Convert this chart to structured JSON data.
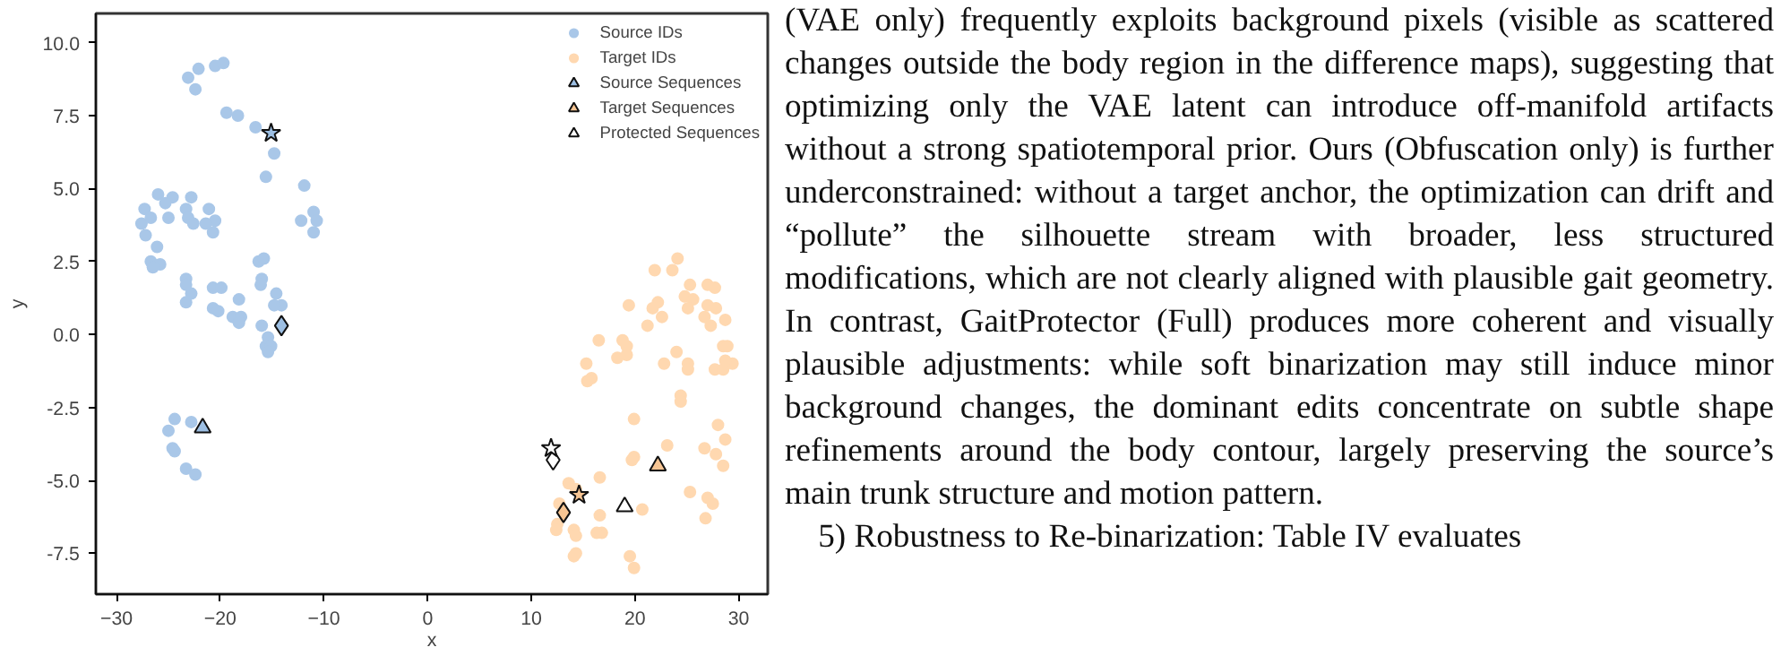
{
  "chart_data": {
    "type": "scatter",
    "xlabel": "x",
    "ylabel": "y",
    "xlim": [
      -32.0,
      32.8
    ],
    "ylim": [
      -8.9,
      11.0
    ],
    "xticks": [
      -30,
      -20,
      -10,
      0,
      10,
      20,
      30
    ],
    "yticks": [
      {
        "value": 10,
        "label": "10.0"
      },
      {
        "value": 7.5,
        "label": "7.5"
      },
      {
        "value": 5,
        "label": "5.0"
      },
      {
        "value": 2.5,
        "label": "2.5"
      },
      {
        "value": 0,
        "label": "0.0"
      },
      {
        "value": -2.5,
        "label": "-2.5"
      },
      {
        "value": -5,
        "label": "-5.0"
      },
      {
        "value": -7.5,
        "label": "-7.5"
      }
    ],
    "grid": false,
    "legend": "top right",
    "series": [
      {
        "name": "Source IDs",
        "color": "#a9c7e8",
        "marker": "circle",
        "x": [
          -23.1,
          -22.1,
          -22.4,
          -20.5,
          -19.7,
          -19.4,
          -18.3,
          -16.6,
          -14.8,
          -15.6,
          -11.9,
          -11.0,
          -10.7,
          -12.2,
          -11.0,
          -26.0,
          -24.6,
          -25.3,
          -27.3,
          -27.6,
          -26.7,
          -27.2,
          -26.1,
          -25.0,
          -23.3,
          -22.8,
          -23.1,
          -22.6,
          -21.1,
          -20.5,
          -20.7,
          -21.4,
          -26.7,
          -25.8,
          -23.3,
          -16.3,
          -15.8,
          -26.5,
          -23.3,
          -22.8,
          -23.3,
          -20.7,
          -19.9,
          -20.7,
          -20.2,
          -18.2,
          -18.8,
          -18.0,
          -18.2,
          -16.0,
          -16.1,
          -14.6,
          -14.1,
          -14.8,
          -16.0,
          -15.4,
          -15.6,
          -15.1,
          -15.4,
          -24.4,
          -22.8,
          -25.0,
          -24.6,
          -24.4,
          -23.3,
          -22.4
        ],
        "values": [
          8.8,
          9.1,
          8.4,
          9.2,
          9.3,
          7.6,
          7.5,
          7.1,
          6.2,
          5.4,
          5.1,
          4.2,
          3.9,
          3.9,
          3.5,
          4.8,
          4.7,
          4.5,
          4.3,
          3.8,
          4.0,
          3.4,
          3.0,
          4.0,
          4.3,
          4.7,
          4.0,
          3.8,
          4.3,
          3.9,
          3.5,
          3.8,
          2.5,
          2.4,
          1.9,
          2.5,
          2.6,
          2.3,
          1.7,
          1.4,
          1.1,
          1.6,
          1.6,
          0.9,
          0.8,
          1.2,
          0.6,
          0.6,
          0.4,
          1.9,
          1.7,
          1.4,
          1.0,
          1.0,
          0.3,
          -0.1,
          -0.4,
          -0.4,
          -0.6,
          -2.9,
          -3.0,
          -3.3,
          -3.9,
          -4.0,
          -4.6,
          -4.8
        ]
      },
      {
        "name": "Target IDs",
        "color": "#ffd8b0",
        "marker": "circle",
        "x": [
          24.1,
          23.6,
          21.9,
          25.3,
          27.0,
          27.7,
          24.8,
          25.6,
          27.0,
          27.8,
          22.2,
          21.7,
          22.6,
          21.2,
          25.1,
          19.4,
          26.7,
          27.3,
          28.7,
          16.5,
          18.8,
          19.2,
          18.3,
          19.2,
          15.3,
          15.8,
          15.4,
          22.8,
          24.0,
          25.1,
          25.1,
          28.5,
          28.9,
          27.7,
          28.5,
          29.4,
          28.7,
          24.4,
          24.4,
          19.9,
          28.0,
          23.1,
          26.7,
          28.7,
          27.8,
          28.5,
          19.9,
          19.7,
          16.6,
          25.3,
          27.0,
          27.5,
          26.8,
          20.7,
          13.6,
          14.3,
          12.7,
          12.5,
          14.1,
          14.3,
          16.6,
          16.8,
          16.3,
          14.3,
          14.1,
          19.5,
          12.4,
          19.9
        ],
        "values": [
          2.6,
          2.2,
          2.2,
          1.7,
          1.7,
          1.6,
          1.3,
          1.2,
          1.0,
          0.9,
          1.1,
          0.9,
          0.6,
          0.3,
          0.9,
          1.0,
          0.6,
          0.3,
          0.5,
          -0.2,
          -0.2,
          -0.4,
          -0.8,
          -0.7,
          -1.0,
          -1.5,
          -1.6,
          -1.0,
          -0.6,
          -1.0,
          -1.2,
          -0.4,
          -0.4,
          -1.2,
          -1.2,
          -1.0,
          -0.9,
          -2.1,
          -2.3,
          -2.9,
          -3.1,
          -3.8,
          -3.9,
          -3.6,
          -4.1,
          -4.5,
          -4.2,
          -4.3,
          -4.9,
          -5.4,
          -5.6,
          -5.8,
          -6.3,
          -6.0,
          -5.1,
          -5.3,
          -5.8,
          -6.5,
          -6.7,
          -6.9,
          -6.2,
          -6.8,
          -6.8,
          -7.5,
          -7.6,
          -7.6,
          -6.7,
          -8.0
        ]
      },
      {
        "name": "Source Sequences",
        "color": "#9dbfe3",
        "marker": "triangle",
        "x": [
          -21.7
        ],
        "values": [
          -3.2
        ]
      },
      {
        "color": "#9dbfe3",
        "marker": "diamond",
        "x": [
          -14.1
        ],
        "values": [
          0.3
        ]
      },
      {
        "color": "#9dbfe3",
        "marker": "star",
        "x": [
          -15.1
        ],
        "values": [
          6.9
        ]
      },
      {
        "name": "Target Sequences",
        "color": "#f7c593",
        "marker": "triangle",
        "x": [
          22.2
        ],
        "values": [
          -4.5
        ]
      },
      {
        "color": "#f7c593",
        "marker": "diamond",
        "x": [
          13.1
        ],
        "values": [
          -6.1
        ]
      },
      {
        "color": "#f7c593",
        "marker": "star",
        "x": [
          14.6
        ],
        "values": [
          -5.5
        ]
      },
      {
        "name": "Protected Sequences",
        "color": "#ffffff",
        "marker": "triangle",
        "x": [
          19.0
        ],
        "values": [
          -5.9
        ]
      },
      {
        "color": "#ffffff",
        "marker": "diamond",
        "x": [
          12.1
        ],
        "values": [
          -4.3
        ]
      },
      {
        "color": "#ffffff",
        "marker": "star",
        "x": [
          11.9
        ],
        "values": [
          -3.9
        ]
      }
    ],
    "annotations": [
      "(VAE only) frequently exploits background pixels (visible as scattered changes outside the body region in the difference maps), suggesting that optimizing only the VAE latent can introduce off-manifold artifacts without a strong spatiotemporal prior. Ours (Obfuscation only) is further underconstrained: without a target anchor, the optimization can drift and “pollute” the silhouette stream with broader, less structured modifications, which are not clearly aligned with plausible gait geometry. In contrast, GaitProtector (Full) produces more coherent and visually plausible adjustments: while soft binarization may still induce minor background changes, the dominant edits concentrate on subtle shape refinements around the body contour, largely preserving the source’s main trunk structure and motion pattern.",
      "5) Robustness to Re-binarization: Table IV evaluates"
    ]
  }
}
